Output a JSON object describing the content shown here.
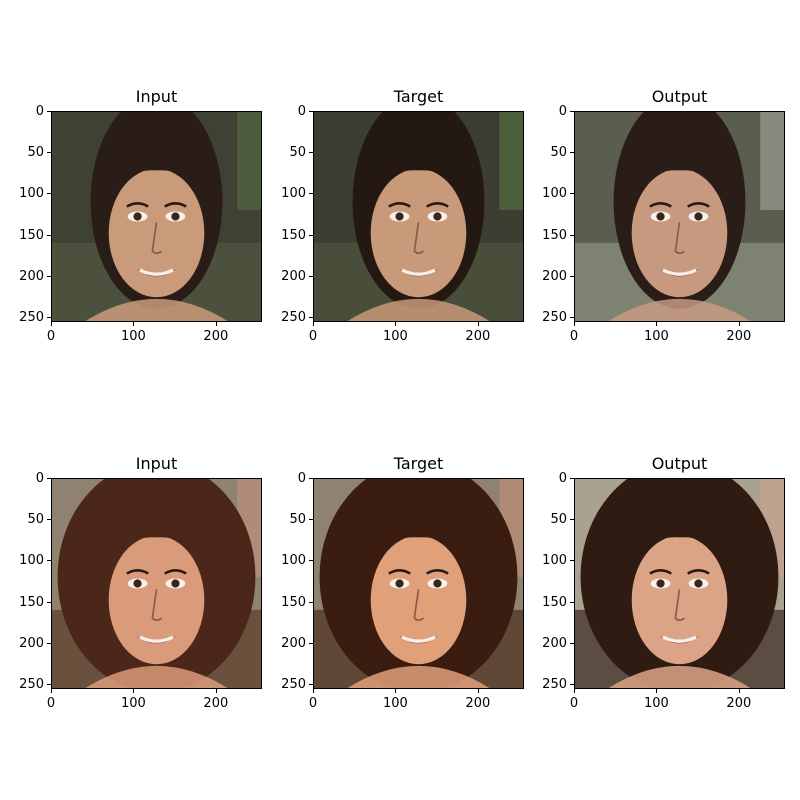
{
  "rows": [
    {
      "panels": [
        {
          "title": "Input"
        },
        {
          "title": "Target"
        },
        {
          "title": "Output"
        }
      ]
    },
    {
      "panels": [
        {
          "title": "Input"
        },
        {
          "title": "Target"
        },
        {
          "title": "Output"
        }
      ]
    }
  ],
  "yticks": [
    "0",
    "50",
    "100",
    "150",
    "200",
    "250"
  ],
  "xticks": [
    "0",
    "100",
    "200"
  ]
}
